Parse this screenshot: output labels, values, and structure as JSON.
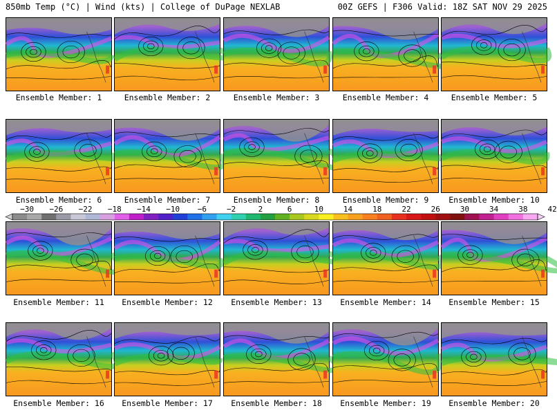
{
  "header": {
    "left": "850mb Temp (°C) | Wind (kts) | College of DuPage NEXLAB",
    "right": "00Z GEFS | F306 Valid: 18Z SAT NOV 29 2025"
  },
  "panels": [
    {
      "label": "Ensemble Member: 1"
    },
    {
      "label": "Ensemble Member: 2"
    },
    {
      "label": "Ensemble Member: 3"
    },
    {
      "label": "Ensemble Member: 4"
    },
    {
      "label": "Ensemble Member: 5"
    },
    {
      "label": "Ensemble Member: 6"
    },
    {
      "label": "Ensemble Member: 7"
    },
    {
      "label": "Ensemble Member: 8"
    },
    {
      "label": "Ensemble Member: 9"
    },
    {
      "label": "Ensemble Member: 10"
    },
    {
      "label": "Ensemble Member: 11"
    },
    {
      "label": "Ensemble Member: 12"
    },
    {
      "label": "Ensemble Member: 13"
    },
    {
      "label": "Ensemble Member: 14"
    },
    {
      "label": "Ensemble Member: 15"
    },
    {
      "label": "Ensemble Member: 16"
    },
    {
      "label": "Ensemble Member: 17"
    },
    {
      "label": "Ensemble Member: 18"
    },
    {
      "label": "Ensemble Member: 19"
    },
    {
      "label": "Ensemble Member: 20"
    }
  ],
  "colorbar": {
    "labels": [
      "−30",
      "−26",
      "−22",
      "−18",
      "−14",
      "−10",
      "−6",
      "−2",
      "2",
      "6",
      "10",
      "14",
      "18",
      "22",
      "26",
      "30",
      "34",
      "38",
      "42"
    ],
    "colors": [
      "#8c8c8c",
      "#a8a8a8",
      "#707070",
      "#9a9aa6",
      "#c8c8d8",
      "#b0b8d8",
      "#d8a0e0",
      "#e060e8",
      "#c020c8",
      "#8020c0",
      "#5020c8",
      "#2040d8",
      "#2070e8",
      "#30a0f0",
      "#40d0f0",
      "#30d0b0",
      "#20b870",
      "#20a040",
      "#60b020",
      "#a8c820",
      "#d8d820",
      "#f8f020",
      "#f8c020",
      "#f8a020",
      "#f88020",
      "#f06020",
      "#e83020",
      "#d81818",
      "#c01010",
      "#a01010",
      "#801010",
      "#a01050",
      "#c02090",
      "#e040c0",
      "#f070e0",
      "#f8a8f0"
    ]
  }
}
